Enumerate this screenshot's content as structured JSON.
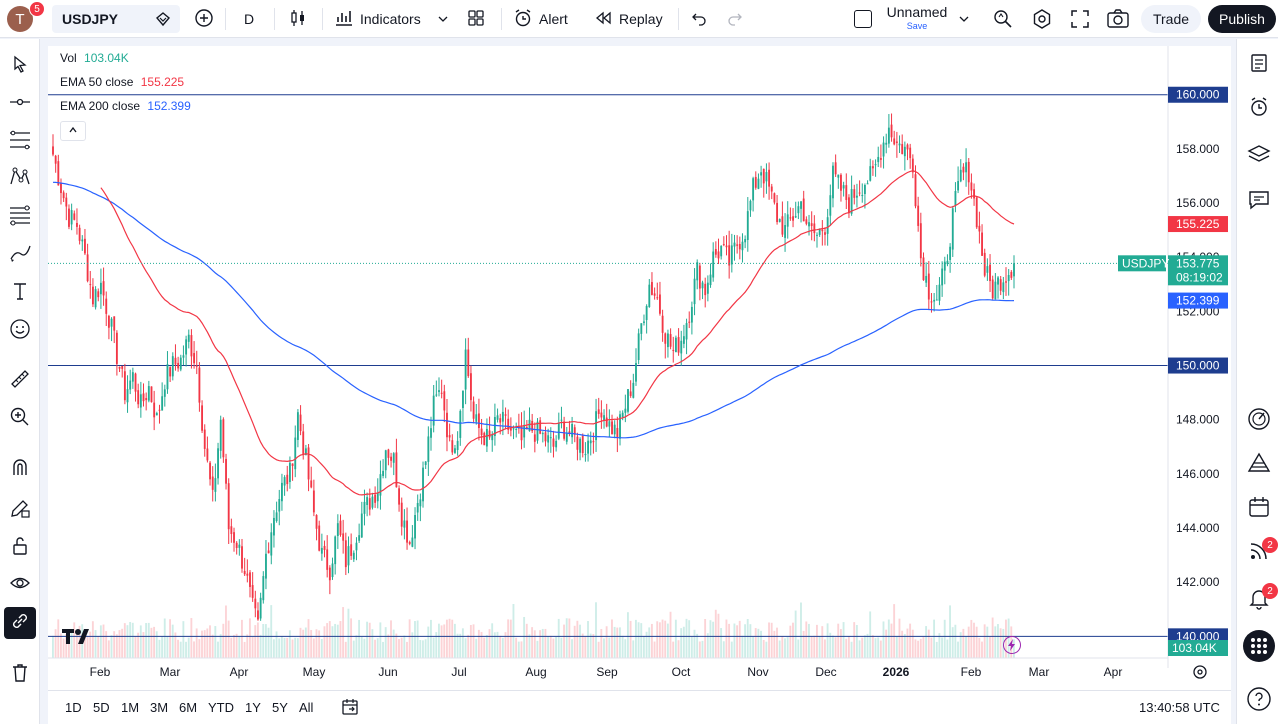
{
  "topbar": {
    "avatar_letter": "T",
    "avatar_badge": "5",
    "symbol": "USDJPY",
    "interval": "D",
    "indicators_label": "Indicators",
    "alert_label": "Alert",
    "replay_label": "Replay",
    "layout_name": "Unnamed",
    "layout_save": "Save",
    "trade_label": "Trade",
    "publish_label": "Publish"
  },
  "legend": {
    "vol_label": "Vol",
    "vol_value": "103.04K",
    "ema50_label": "EMA 50 close",
    "ema50_value": "155.225",
    "ema200_label": "EMA 200 close",
    "ema200_value": "152.399"
  },
  "colors": {
    "up": "#22ab94",
    "down": "#f23645",
    "ema50": "#f23645",
    "ema200": "#2962ff",
    "hline": "#1e3d8f",
    "price_badge": "#22ab94"
  },
  "price_axis": {
    "ticks": [
      "158.000",
      "156.000",
      "154.000",
      "152.000",
      "150.000",
      "148.000",
      "146.000",
      "144.000",
      "142.000",
      "140.000"
    ],
    "hlines": [
      "160.000",
      "150.000",
      "140.000"
    ],
    "ema50_badge": "155.225",
    "ema200_badge": "152.399",
    "symbol_badge": "USDJPY",
    "last_price": "153.775",
    "countdown": "08:19:02",
    "vol_badge": "103.04K"
  },
  "time_axis": {
    "labels": [
      "Feb",
      "Mar",
      "Apr",
      "May",
      "Jun",
      "Jul",
      "Aug",
      "Sep",
      "Oct",
      "Nov",
      "Dec",
      "2026",
      "Feb",
      "Mar",
      "Apr"
    ]
  },
  "bottombar": {
    "ranges": [
      "1D",
      "5D",
      "1M",
      "3M",
      "6M",
      "YTD",
      "1Y",
      "5Y",
      "All"
    ],
    "clock": "13:40:58 UTC"
  },
  "right_toolbar": {
    "badge_signals": "2",
    "badge_alerts": "2"
  },
  "chart_data": {
    "type": "candlestick",
    "symbol": "USDJPY",
    "interval": "1D",
    "y_range": [
      139.2,
      161.8
    ],
    "key_levels": [
      160,
      150,
      140
    ],
    "last": 153.775,
    "ema50_last": 155.225,
    "ema200_last": 152.399,
    "volume_last": "103.04K",
    "close_path": [
      [
        0,
        157.8
      ],
      [
        3,
        156.6
      ],
      [
        6,
        155.5
      ],
      [
        9,
        155.2
      ],
      [
        12,
        154.0
      ],
      [
        15,
        152.5
      ],
      [
        18,
        153.0
      ],
      [
        21,
        151.8
      ],
      [
        24,
        150.4
      ],
      [
        27,
        149.0
      ],
      [
        30,
        149.6
      ],
      [
        33,
        148.5
      ],
      [
        36,
        149.2
      ],
      [
        39,
        148.0
      ],
      [
        42,
        149.5
      ],
      [
        45,
        150.0
      ],
      [
        48,
        150.2
      ],
      [
        51,
        151.0
      ],
      [
        54,
        150.0
      ],
      [
        57,
        147.0
      ],
      [
        60,
        145.0
      ],
      [
        63,
        148.0
      ],
      [
        66,
        144.0
      ],
      [
        69,
        143.5
      ],
      [
        72,
        142.5
      ],
      [
        75,
        141.0
      ],
      [
        77,
        140.3
      ],
      [
        80,
        143.0
      ],
      [
        83,
        144.5
      ],
      [
        86,
        145.5
      ],
      [
        89,
        146.0
      ],
      [
        92,
        148.2
      ],
      [
        95,
        146.5
      ],
      [
        98,
        144.5
      ],
      [
        101,
        143.0
      ],
      [
        104,
        142.5
      ],
      [
        107,
        144.0
      ],
      [
        110,
        142.8
      ],
      [
        113,
        143.5
      ],
      [
        116,
        144.5
      ],
      [
        119,
        145.0
      ],
      [
        122,
        145.5
      ],
      [
        125,
        147.0
      ],
      [
        128,
        146.5
      ],
      [
        131,
        144.5
      ],
      [
        134,
        143.5
      ],
      [
        137,
        145.0
      ],
      [
        140,
        146.5
      ],
      [
        143,
        148.5
      ],
      [
        146,
        149.2
      ],
      [
        149,
        147.0
      ],
      [
        152,
        147.5
      ],
      [
        155,
        150.5
      ],
      [
        158,
        148.0
      ],
      [
        161,
        147.5
      ],
      [
        164,
        147.2
      ],
      [
        167,
        148.0
      ],
      [
        170,
        147.8
      ],
      [
        173,
        147.5
      ],
      [
        176,
        147.2
      ],
      [
        179,
        147.7
      ],
      [
        182,
        147.5
      ],
      [
        185,
        147.3
      ],
      [
        188,
        147.0
      ],
      [
        191,
        147.8
      ],
      [
        194,
        147.5
      ],
      [
        197,
        147.2
      ],
      [
        200,
        147.0
      ],
      [
        203,
        147.6
      ],
      [
        206,
        148.5
      ],
      [
        209,
        147.8
      ],
      [
        212,
        147.5
      ],
      [
        215,
        148.5
      ],
      [
        218,
        149.5
      ],
      [
        221,
        151.5
      ],
      [
        224,
        153.0
      ],
      [
        227,
        152.5
      ],
      [
        230,
        151.2
      ],
      [
        233,
        150.5
      ],
      [
        236,
        151.0
      ],
      [
        239,
        152.0
      ],
      [
        242,
        153.5
      ],
      [
        245,
        152.8
      ],
      [
        248,
        154.0
      ],
      [
        251,
        154.3
      ],
      [
        254,
        153.8
      ],
      [
        257,
        154.5
      ],
      [
        260,
        155.0
      ],
      [
        263,
        156.5
      ],
      [
        266,
        157.3
      ],
      [
        269,
        156.5
      ],
      [
        272,
        155.5
      ],
      [
        275,
        155.0
      ],
      [
        278,
        155.5
      ],
      [
        281,
        156.0
      ],
      [
        284,
        155.0
      ],
      [
        287,
        154.8
      ],
      [
        290,
        155.2
      ],
      [
        293,
        157.0
      ],
      [
        296,
        156.5
      ],
      [
        299,
        156.0
      ],
      [
        302,
        156.5
      ],
      [
        305,
        156.8
      ],
      [
        308,
        157.0
      ],
      [
        311,
        158.0
      ],
      [
        314,
        158.8
      ],
      [
        317,
        158.2
      ],
      [
        320,
        158.0
      ],
      [
        323,
        157.5
      ],
      [
        326,
        154.0
      ],
      [
        329,
        152.8
      ],
      [
        332,
        152.5
      ],
      [
        335,
        153.5
      ],
      [
        338,
        155.5
      ],
      [
        341,
        157.0
      ],
      [
        344,
        157.2
      ],
      [
        347,
        155.5
      ],
      [
        350,
        153.5
      ],
      [
        353,
        152.8
      ],
      [
        356,
        153.2
      ],
      [
        359,
        153.5
      ],
      [
        361,
        153.775
      ]
    ],
    "time_labels": [
      "Feb",
      "Mar",
      "Apr",
      "May",
      "Jun",
      "Jul",
      "Aug",
      "Sep",
      "Oct",
      "Nov",
      "Dec",
      "2026",
      "Feb",
      "Mar",
      "Apr"
    ]
  }
}
